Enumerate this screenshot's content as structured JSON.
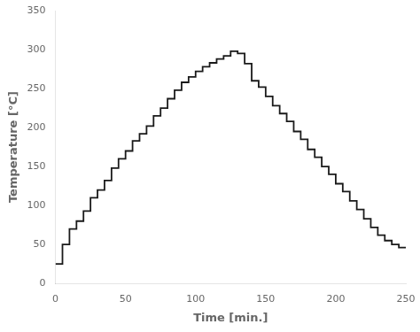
{
  "chart_data": {
    "type": "line",
    "xlabel": "Time [min.]",
    "ylabel": "Temperature [°C]",
    "xlim": [
      0,
      250
    ],
    "ylim": [
      0,
      350
    ],
    "xticks": [
      0,
      50,
      100,
      150,
      200,
      250
    ],
    "yticks": [
      0,
      50,
      100,
      150,
      200,
      250,
      300,
      350
    ],
    "color": "#1a1a1a",
    "grid": false,
    "x": [
      0,
      5,
      5,
      10,
      10,
      15,
      15,
      20,
      20,
      25,
      25,
      30,
      30,
      35,
      35,
      40,
      40,
      45,
      45,
      50,
      50,
      55,
      55,
      60,
      60,
      65,
      65,
      70,
      70,
      75,
      75,
      80,
      80,
      85,
      85,
      90,
      90,
      95,
      95,
      100,
      100,
      105,
      105,
      110,
      110,
      115,
      115,
      120,
      120,
      125,
      125,
      130,
      130,
      135,
      135,
      140,
      140,
      145,
      145,
      150,
      150,
      155,
      155,
      160,
      160,
      165,
      165,
      170,
      170,
      175,
      175,
      180,
      180,
      185,
      185,
      190,
      190,
      195,
      195,
      200,
      200,
      205,
      205,
      210,
      210,
      215,
      215,
      220,
      220,
      225,
      225,
      230,
      230,
      235,
      235,
      240,
      240,
      245,
      245,
      250
    ],
    "values": [
      25,
      25,
      50,
      50,
      70,
      70,
      80,
      80,
      93,
      93,
      110,
      110,
      120,
      120,
      132,
      132,
      148,
      148,
      160,
      160,
      170,
      170,
      183,
      183,
      192,
      192,
      202,
      202,
      215,
      215,
      225,
      225,
      237,
      237,
      248,
      248,
      258,
      258,
      265,
      265,
      272,
      272,
      278,
      278,
      283,
      283,
      288,
      288,
      292,
      292,
      298,
      298,
      295,
      295,
      282,
      282,
      260,
      260,
      252,
      252,
      240,
      240,
      228,
      228,
      218,
      218,
      208,
      208,
      195,
      195,
      185,
      185,
      172,
      172,
      162,
      162,
      150,
      150,
      140,
      140,
      128,
      128,
      118,
      118,
      106,
      106,
      95,
      95,
      83,
      83,
      72,
      72,
      62,
      62,
      55,
      55,
      50,
      50,
      46,
      46
    ]
  }
}
